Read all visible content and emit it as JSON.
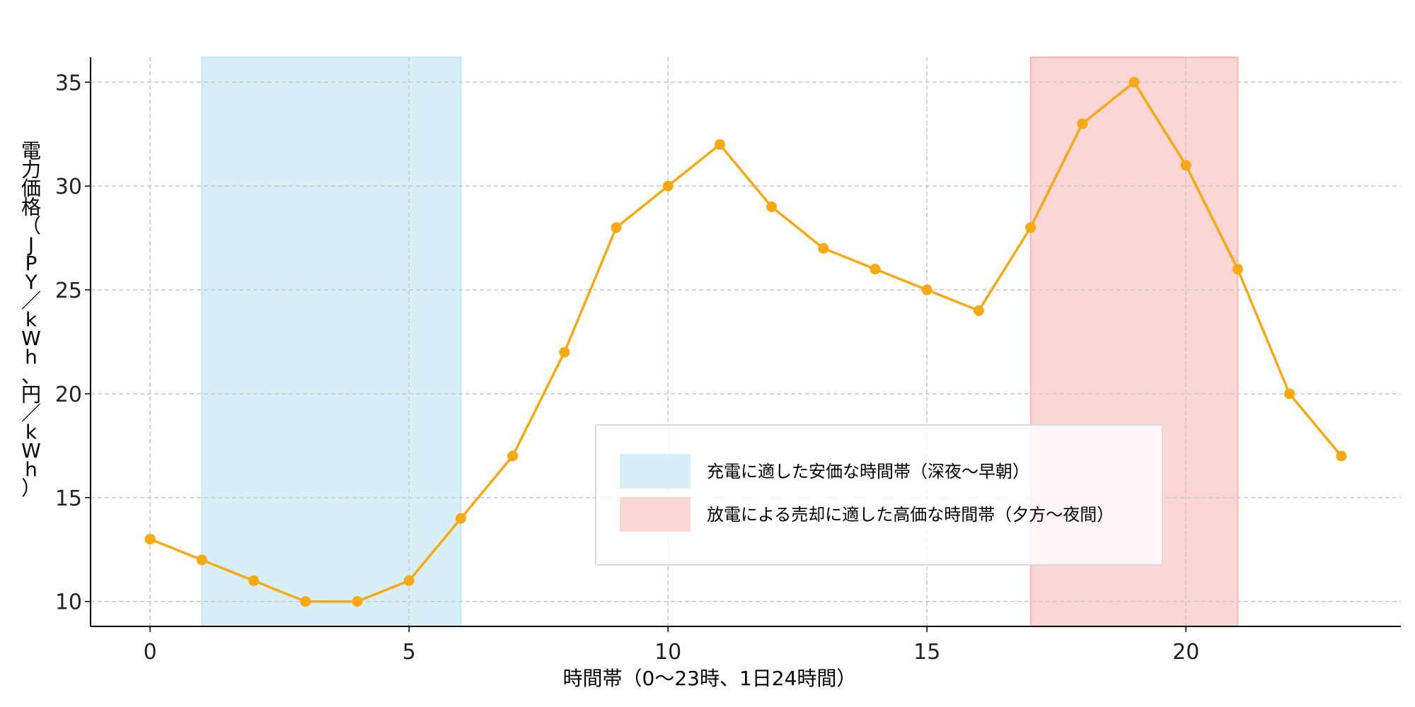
{
  "chart_data": {
    "type": "line",
    "title": "",
    "xlabel": "時間帯（0〜23時、1日24時間）",
    "ylabel": "電力価格（JPY／kWh、円／kWh）",
    "xlim": [
      -1.15,
      24.15
    ],
    "ylim": [
      8.8,
      36.2
    ],
    "x_ticks": [
      0,
      5,
      10,
      15,
      20
    ],
    "y_ticks": [
      10,
      15,
      20,
      25,
      30,
      35
    ],
    "grid": true,
    "legend_position": "lower-right",
    "series": [
      {
        "x": [
          0,
          1,
          2,
          3,
          4,
          5,
          6,
          7,
          8,
          9,
          10,
          11,
          12,
          13,
          14,
          15,
          16,
          17,
          18,
          19,
          20,
          21,
          22,
          23
        ],
        "values": [
          13,
          12,
          11,
          10,
          10,
          11,
          14,
          17,
          22,
          28,
          30,
          32,
          29,
          27,
          26,
          25,
          24,
          28,
          33,
          35,
          31,
          26,
          20,
          17
        ],
        "color": "#f7a911"
      }
    ],
    "shaded_regions": [
      {
        "label": "充電に適した安価な時間帯（深夜〜早朝）",
        "x_start": 1,
        "x_end": 6,
        "color": "#d8eff7",
        "border": "#c4e6f2"
      },
      {
        "label": "放電による売却に適した高価な時間帯（夕方〜夜間）",
        "x_start": 17,
        "x_end": 21,
        "color": "#fcd6d4",
        "border": "#f6b8b5"
      }
    ]
  }
}
